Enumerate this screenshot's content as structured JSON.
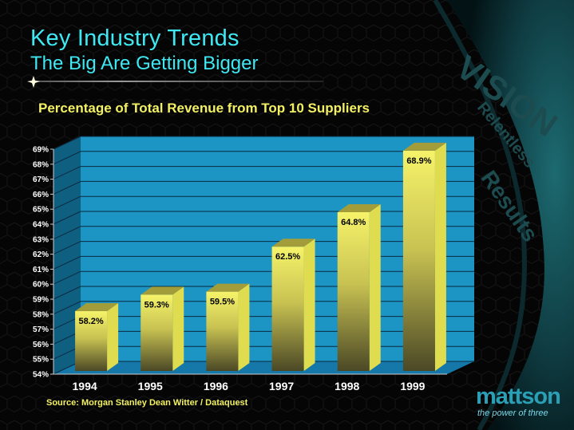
{
  "slide": {
    "title": "Key Industry Trends",
    "subtitle": "The Big Are Getting Bigger",
    "source": "Source: Morgan Stanley Dean Witter / Dataquest",
    "watermark": {
      "line1": "VISION",
      "line2": "Relentless",
      "line3": "Results"
    },
    "logo": {
      "word": "mattson",
      "tagline": "the power of three"
    }
  },
  "colors": {
    "title": "#3fe9f3",
    "chart_title": "#f3f163",
    "plot_back": "#1c94c4",
    "bar_top": "#f6f36a",
    "bar_bottom": "#4b4826"
  },
  "chart_data": {
    "type": "bar",
    "title": "Percentage of Total Revenue from Top 10 Suppliers",
    "categories": [
      "1994",
      "1995",
      "1996",
      "1997",
      "1998",
      "1999"
    ],
    "values": [
      58.2,
      59.3,
      59.5,
      62.5,
      64.8,
      68.9
    ],
    "data_labels": [
      "58.2%",
      "59.3%",
      "59.5%",
      "62.5%",
      "64.8%",
      "68.9%"
    ],
    "ylim": [
      54,
      69
    ],
    "y_ticks": [
      "54%",
      "55%",
      "56%",
      "57%",
      "58%",
      "59%",
      "60%",
      "61%",
      "62%",
      "63%",
      "64%",
      "65%",
      "66%",
      "67%",
      "68%",
      "69%"
    ],
    "grid": true,
    "legend": "none",
    "style": "3d"
  }
}
